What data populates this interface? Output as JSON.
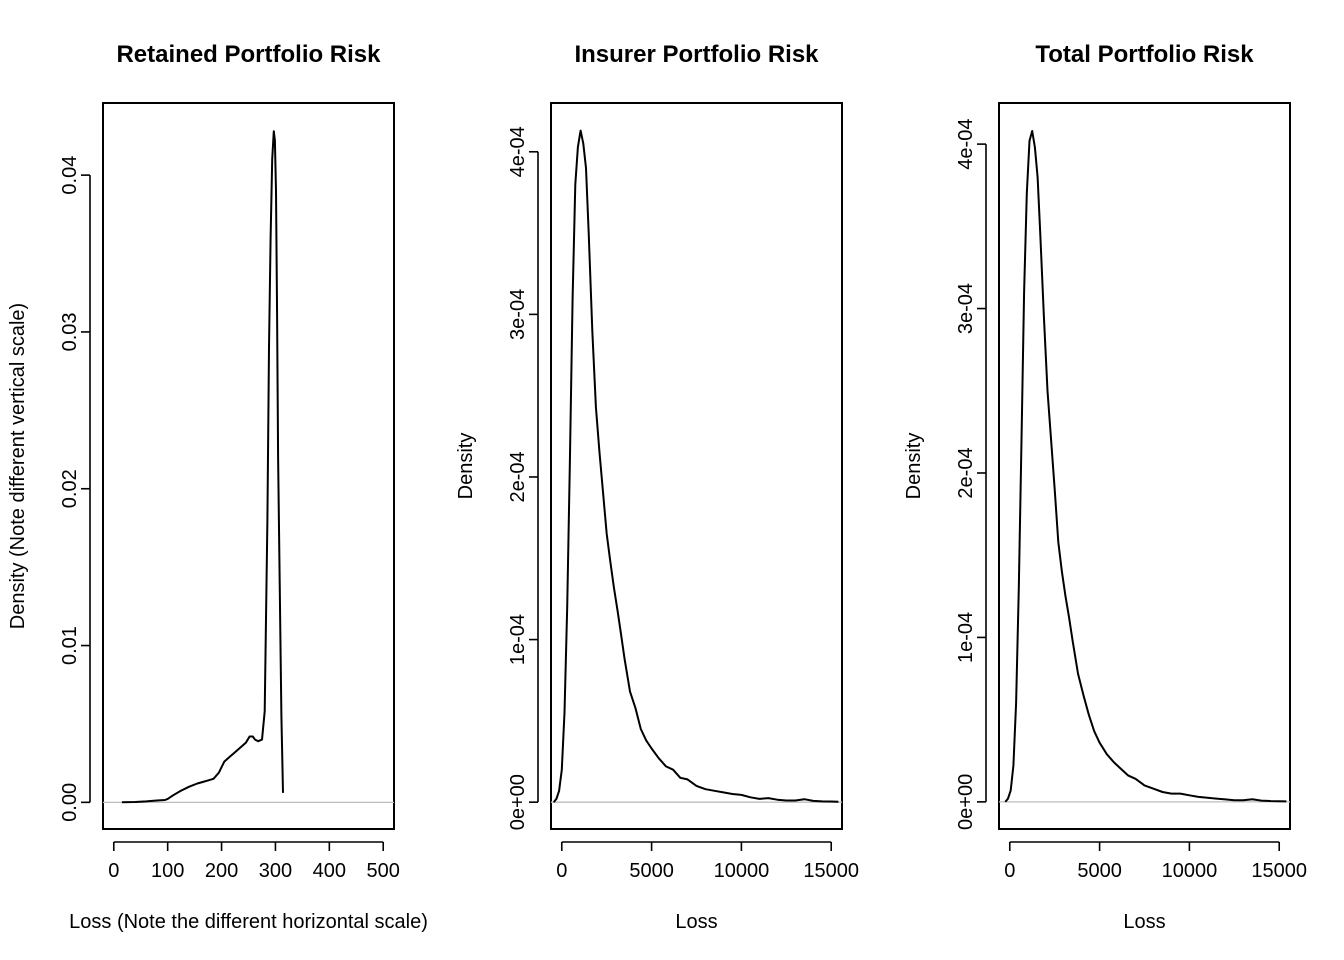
{
  "chart_data": [
    {
      "type": "line",
      "title": "Retained Portfolio Risk",
      "xlabel": "Loss (Note the different horizontal scale)",
      "ylabel": "Density (Note different vertical scale)",
      "xlim": [
        -20,
        520
      ],
      "ylim": [
        -0.0017,
        0.0446
      ],
      "x_ticks": [
        0,
        100,
        200,
        300,
        400,
        500
      ],
      "x_tick_labels": [
        "0",
        "100",
        "200",
        "300",
        "400",
        "500"
      ],
      "y_ticks": [
        0,
        0.01,
        0.02,
        0.03,
        0.04
      ],
      "y_tick_labels": [
        "0.00",
        "0.01",
        "0.02",
        "0.03",
        "0.04"
      ],
      "zero_line": true,
      "grid": false,
      "series": [
        {
          "x": [
            15,
            40,
            60,
            80,
            95,
            100,
            110,
            125,
            140,
            155,
            165,
            175,
            185,
            195,
            205,
            215,
            225,
            235,
            245,
            252,
            258,
            262,
            268,
            275,
            280,
            285,
            288,
            291,
            294,
            297,
            299,
            301,
            303,
            305,
            308,
            311,
            314
          ],
          "y": [
            0.0,
            2e-05,
            6e-05,
            0.00012,
            0.00015,
            0.00022,
            0.00045,
            0.00075,
            0.001,
            0.0012,
            0.0013,
            0.0014,
            0.0015,
            0.0019,
            0.0026,
            0.0029,
            0.0032,
            0.0035,
            0.0038,
            0.0042,
            0.0042,
            0.004,
            0.0039,
            0.004,
            0.0058,
            0.018,
            0.029,
            0.036,
            0.041,
            0.0428,
            0.0422,
            0.039,
            0.031,
            0.022,
            0.0135,
            0.0055,
            0.0006
          ]
        }
      ]
    },
    {
      "type": "line",
      "title": "Insurer Portfolio Risk",
      "xlabel": "Loss",
      "ylabel": "Density",
      "xlim": [
        -600,
        15600
      ],
      "ylim": [
        -1.65e-05,
        0.00043
      ],
      "x_ticks": [
        0,
        5000,
        10000,
        15000
      ],
      "x_tick_labels": [
        "0",
        "5000",
        "10000",
        "15000"
      ],
      "y_ticks": [
        0,
        0.0001,
        0.0002,
        0.0003,
        0.0004
      ],
      "y_tick_labels": [
        "0e+00",
        "1e-04",
        "2e-04",
        "3e-04",
        "4e-04"
      ],
      "zero_line": true,
      "grid": false,
      "series": [
        {
          "x": [
            -450,
            -300,
            -150,
            0,
            150,
            300,
            450,
            600,
            750,
            900,
            1050,
            1200,
            1350,
            1500,
            1700,
            1900,
            2100,
            2300,
            2500,
            2700,
            2900,
            3100,
            3300,
            3500,
            3800,
            4100,
            4400,
            4700,
            5000,
            5400,
            5800,
            6200,
            6600,
            7000,
            7500,
            8000,
            8500,
            9000,
            9500,
            10000,
            10500,
            11000,
            11500,
            12000,
            12500,
            13000,
            13500,
            14000,
            14500,
            15000,
            15400
          ],
          "y": [
            0.0,
            2e-06,
            7e-06,
            2e-05,
            5.5e-05,
            0.00012,
            0.00021,
            0.00031,
            0.00038,
            0.000403,
            0.000413,
            0.000405,
            0.00039,
            0.00035,
            0.00029,
            0.000243,
            0.000215,
            0.00019,
            0.000165,
            0.000148,
            0.000132,
            0.000118,
            0.000103,
            8.8e-05,
            6.8e-05,
            5.8e-05,
            4.5e-05,
            3.8e-05,
            3.3e-05,
            2.7e-05,
            2.2e-05,
            2e-05,
            1.5e-05,
            1.4e-05,
            1e-05,
            8e-06,
            7e-06,
            6e-06,
            5e-06,
            4.5e-06,
            3e-06,
            2e-06,
            2.5e-06,
            1.5e-06,
            1e-06,
            1e-06,
            1.8e-06,
            8e-07,
            5e-07,
            4e-07,
            3e-07
          ]
        }
      ]
    },
    {
      "type": "line",
      "title": "Total Portfolio Risk",
      "xlabel": "Loss",
      "ylabel": "Density",
      "xlim": [
        -600,
        15600
      ],
      "ylim": [
        -1.65e-05,
        0.000425
      ],
      "x_ticks": [
        0,
        5000,
        10000,
        15000
      ],
      "x_tick_labels": [
        "0",
        "5000",
        "10000",
        "15000"
      ],
      "y_ticks": [
        0,
        0.0001,
        0.0002,
        0.0003,
        0.0004
      ],
      "y_tick_labels": [
        "0e+00",
        "1e-04",
        "2e-04",
        "3e-04",
        "4e-04"
      ],
      "zero_line": true,
      "grid": false,
      "series": [
        {
          "x": [
            -250,
            -100,
            50,
            200,
            350,
            500,
            650,
            800,
            950,
            1100,
            1250,
            1400,
            1550,
            1700,
            1900,
            2100,
            2300,
            2500,
            2700,
            2900,
            3100,
            3300,
            3500,
            3800,
            4100,
            4400,
            4700,
            5000,
            5400,
            5800,
            6200,
            6600,
            7000,
            7500,
            8000,
            8500,
            9000,
            9500,
            10000,
            10500,
            11000,
            11500,
            12000,
            12500,
            13000,
            13500,
            14000,
            14500,
            15000,
            15400
          ],
          "y": [
            0.0,
            2e-06,
            7e-06,
            2.2e-05,
            6e-05,
            0.00013,
            0.00022,
            0.00031,
            0.00037,
            0.000402,
            0.000408,
            0.000398,
            0.00038,
            0.000345,
            0.000295,
            0.00025,
            0.00022,
            0.00019,
            0.000158,
            0.00014,
            0.000125,
            0.000112,
            9.8e-05,
            7.8e-05,
            6.5e-05,
            5.3e-05,
            4.3e-05,
            3.6e-05,
            2.9e-05,
            2.4e-05,
            2e-05,
            1.6e-05,
            1.4e-05,
            1e-05,
            8e-06,
            6e-06,
            5e-06,
            5e-06,
            4e-06,
            3e-06,
            2.5e-06,
            2e-06,
            1.5e-06,
            1e-06,
            1e-06,
            1.6e-06,
            8e-07,
            5e-07,
            4e-07,
            3e-07
          ]
        }
      ]
    }
  ]
}
